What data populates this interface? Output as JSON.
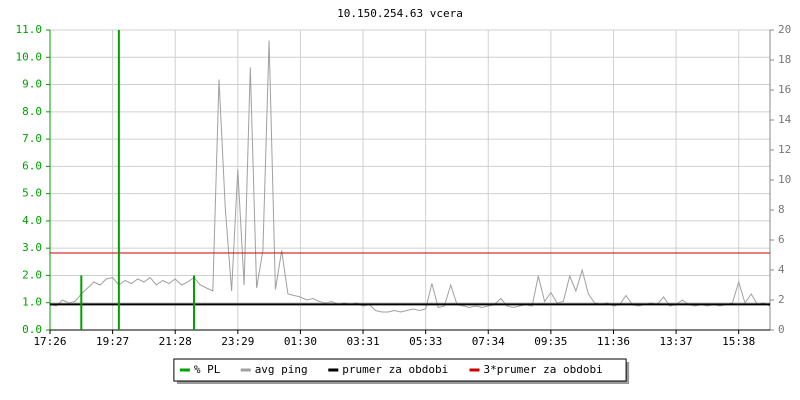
{
  "chart_data": {
    "type": "line",
    "title": "10.150.254.63 vcera",
    "categories": [
      "17:26",
      null,
      null,
      null,
      null,
      null,
      null,
      null,
      null,
      null,
      "19:27",
      null,
      null,
      null,
      null,
      null,
      null,
      null,
      null,
      null,
      "21:28",
      null,
      null,
      null,
      null,
      null,
      null,
      null,
      null,
      null,
      "23:29",
      null,
      null,
      null,
      null,
      null,
      null,
      null,
      null,
      null,
      "01:30",
      null,
      null,
      null,
      null,
      null,
      null,
      null,
      null,
      null,
      "03:31",
      null,
      null,
      null,
      null,
      null,
      null,
      null,
      null,
      null,
      "05:33",
      null,
      null,
      null,
      null,
      null,
      null,
      null,
      null,
      null,
      "07:34",
      null,
      null,
      null,
      null,
      null,
      null,
      null,
      null,
      null,
      "09:35",
      null,
      null,
      null,
      null,
      null,
      null,
      null,
      null,
      null,
      "11:36",
      null,
      null,
      null,
      null,
      null,
      null,
      null,
      null,
      null,
      "13:37",
      null,
      null,
      null,
      null,
      null,
      null,
      null,
      null,
      null,
      "15:38",
      null,
      null,
      null,
      null,
      null
    ],
    "series": [
      {
        "name": "% PL",
        "color": "#00a000",
        "values": [
          0,
          0,
          0,
          0,
          0,
          2,
          0,
          0,
          0,
          0,
          0,
          11,
          0,
          0,
          0,
          0,
          0,
          0,
          0,
          0,
          0,
          0,
          0,
          2,
          0,
          0,
          0,
          0,
          0,
          0,
          0,
          0,
          0,
          0,
          0,
          0,
          0,
          0,
          0,
          0,
          0,
          0,
          0,
          0,
          0,
          0,
          0,
          0,
          0,
          0,
          0,
          0,
          0,
          0,
          0,
          0,
          0,
          0,
          0,
          0,
          0,
          0,
          0,
          0,
          0,
          0,
          0,
          0,
          0,
          0,
          0,
          0,
          0,
          0,
          0,
          0,
          0,
          0,
          0,
          0,
          0,
          0,
          0,
          0,
          0,
          0,
          0,
          0,
          0,
          0,
          0,
          0,
          0,
          0,
          0,
          0,
          0,
          0,
          0,
          0,
          0,
          0,
          0,
          0,
          0,
          0,
          0,
          0,
          0,
          0,
          0,
          0,
          0,
          0,
          0,
          0
        ]
      },
      {
        "name": "avg ping",
        "color": "#a0a0a0",
        "axis": "y2",
        "values": [
          1.7,
          1.6,
          2.0,
          1.8,
          1.9,
          2.4,
          2.8,
          3.2,
          3.0,
          3.4,
          3.5,
          3.0,
          3.3,
          3.1,
          3.4,
          3.2,
          3.5,
          3.0,
          3.3,
          3.1,
          3.4,
          3.0,
          3.2,
          3.5,
          3.0,
          2.8,
          2.6,
          16.7,
          8.1,
          2.6,
          10.7,
          3.0,
          17.5,
          2.8,
          5.3,
          19.3,
          2.7,
          5.3,
          2.4,
          2.3,
          2.2,
          2.0,
          2.1,
          1.9,
          1.8,
          1.9,
          1.7,
          1.8,
          1.7,
          1.8,
          1.6,
          1.7,
          1.3,
          1.2,
          1.2,
          1.3,
          1.2,
          1.3,
          1.4,
          1.3,
          1.4,
          3.1,
          1.5,
          1.6,
          3.0,
          1.7,
          1.6,
          1.5,
          1.6,
          1.5,
          1.6,
          1.7,
          2.1,
          1.6,
          1.5,
          1.6,
          1.7,
          1.6,
          3.6,
          1.9,
          2.5,
          1.8,
          1.9,
          3.6,
          2.6,
          4.0,
          2.4,
          1.8,
          1.7,
          1.8,
          1.6,
          1.7,
          2.3,
          1.7,
          1.6,
          1.7,
          1.8,
          1.7,
          2.2,
          1.6,
          1.7,
          2.0,
          1.7,
          1.6,
          1.7,
          1.6,
          1.7,
          1.6,
          1.7,
          1.8,
          3.2,
          1.8,
          2.4,
          1.7,
          1.8,
          1.6
        ]
      },
      {
        "name": "prumer za obdobi",
        "color": "#000000",
        "axis": "y2",
        "value": 1.71
      },
      {
        "name": "3*prumer za obdobi",
        "color": "#cc0000",
        "axis": "y2",
        "value": 5.13
      }
    ],
    "ylim": [
      0,
      11
    ],
    "yticks": [
      {
        "value": 0,
        "label": "0.0"
      },
      {
        "value": 1,
        "label": "1.0"
      },
      {
        "value": 2,
        "label": "2.0"
      },
      {
        "value": 3,
        "label": "3.0"
      },
      {
        "value": 4,
        "label": "4.0"
      },
      {
        "value": 5,
        "label": "5.0"
      },
      {
        "value": 6,
        "label": "6.0"
      },
      {
        "value": 7,
        "label": "7.0"
      },
      {
        "value": 8,
        "label": "8.0"
      },
      {
        "value": 9,
        "label": "9.0"
      },
      {
        "value": 10,
        "label": "10.0"
      },
      {
        "value": 11,
        "label": "11.0"
      }
    ],
    "y2lim": [
      0,
      20
    ],
    "y2ticks": [
      0,
      2,
      4,
      6,
      8,
      10,
      12,
      14,
      16,
      18,
      20
    ],
    "grid": true
  }
}
